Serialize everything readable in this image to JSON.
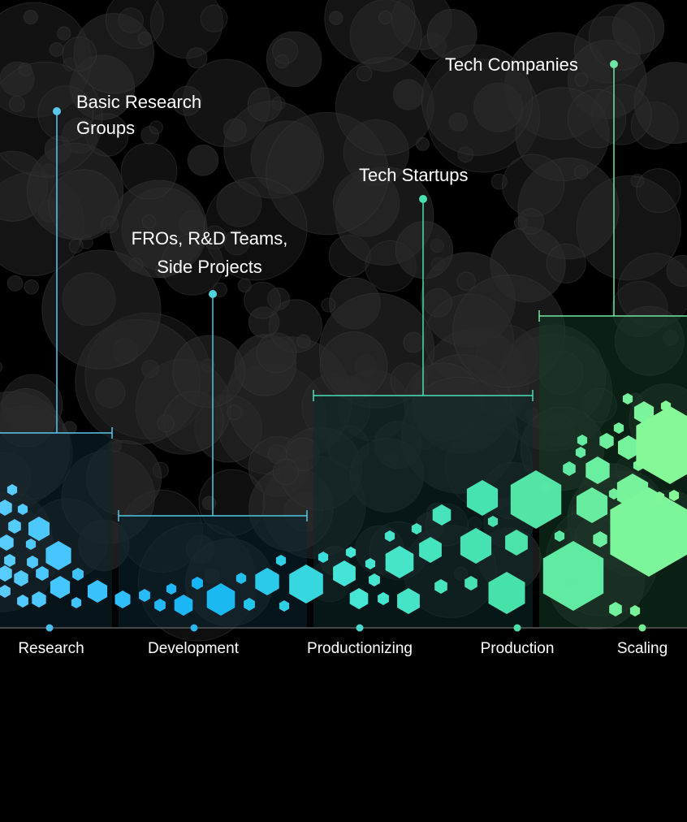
{
  "actors": [
    {
      "label_lines": [
        "Basic Research",
        "Groups"
      ],
      "color": "#5ac8f0"
    },
    {
      "label_lines": [
        "FROs, R&D Teams,",
        "Side Projects"
      ],
      "color": "#4fd3dc"
    },
    {
      "label_lines": [
        "Tech Startups"
      ],
      "color": "#4be0b4"
    },
    {
      "label_lines": [
        "Tech Companies"
      ],
      "color": "#6ee8a0"
    }
  ],
  "stages": [
    {
      "label": "Research",
      "color": "#4bc0f0"
    },
    {
      "label": "Development",
      "color": "#2ab4f0"
    },
    {
      "label": "Productionizing",
      "color": "#45dccf"
    },
    {
      "label": "Production",
      "color": "#4ae0a8"
    },
    {
      "label": "Scaling",
      "color": "#74ec96"
    }
  ],
  "palette": {
    "background": "#000000",
    "bubbles": "#2a2a2a",
    "axis": "#5a5a5a"
  }
}
